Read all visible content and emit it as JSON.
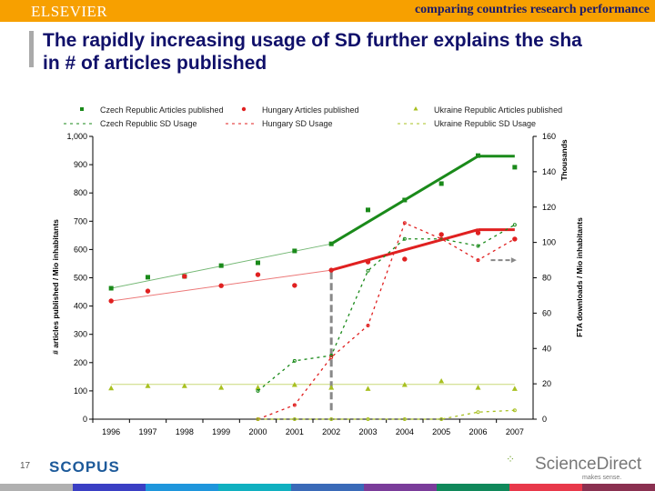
{
  "header": {
    "brand": "ELSEVIER",
    "subject": "comparing countries research performance",
    "title_line1": "The rapidly increasing usage of SD further explains the sha",
    "title_line2": "in # of articles published"
  },
  "footer": {
    "page": "17",
    "scopus": "SCOPUS",
    "sciencedirect": "ScienceDirect",
    "tagline": "makes sense.",
    "bar_colors": [
      "#b0b0b0",
      "#3a3fc4",
      "#1e96dc",
      "#10b0c0",
      "#3a6ab8",
      "#7a3c9a",
      "#10885a",
      "#e8384a",
      "#8a3050"
    ]
  },
  "chart_data": {
    "type": "line",
    "categories": [
      "1996",
      "1997",
      "1998",
      "1999",
      "2000",
      "2001",
      "2002",
      "2003",
      "2004",
      "2005",
      "2006",
      "2007"
    ],
    "ylabel": "# articles published / Mio inhabitants",
    "y2label": "FTA downloads / Mio inhabitants",
    "y2unit": "Thousands",
    "ylim": [
      0,
      1000
    ],
    "y2lim": [
      0,
      160
    ],
    "yticks": [
      "0",
      "100",
      "200",
      "300",
      "400",
      "500",
      "600",
      "700",
      "800",
      "900",
      "1,000"
    ],
    "y2ticks": [
      "0",
      "20",
      "40",
      "60",
      "80",
      "100",
      "120",
      "140",
      "160"
    ],
    "legend_position": "top",
    "series": [
      {
        "name": "Czech Republic Articles published",
        "axis": "left",
        "style": "markers",
        "marker": "square",
        "color": "#1a8a1a",
        "values": [
          463,
          502,
          505,
          543,
          553,
          595,
          620,
          740,
          775,
          833,
          932,
          891
        ]
      },
      {
        "name": "Hungary Articles published",
        "axis": "left",
        "style": "markers",
        "marker": "circle",
        "color": "#e02020",
        "values": [
          418,
          453,
          505,
          472,
          511,
          473,
          527,
          556,
          566,
          653,
          659,
          637
        ]
      },
      {
        "name": "Ukraine Republic Articles published",
        "axis": "left",
        "style": "markers",
        "marker": "triangle",
        "color": "#a8c020",
        "values": [
          110,
          118,
          118,
          112,
          112,
          122,
          112,
          108,
          122,
          135,
          112,
          108
        ]
      },
      {
        "name": "Czech Republic SD Usage",
        "axis": "right",
        "style": "dashed",
        "color": "#1a8a1a",
        "values": [
          null,
          null,
          null,
          null,
          16,
          33,
          36,
          84,
          102,
          102,
          98,
          110
        ]
      },
      {
        "name": "Hungary SD Usage",
        "axis": "right",
        "style": "dashed",
        "color": "#e02020",
        "values": [
          null,
          null,
          null,
          null,
          0,
          8,
          35,
          53,
          111,
          102,
          90,
          102
        ]
      },
      {
        "name": "Ukraine Republic SD Usage",
        "axis": "right",
        "style": "dashed",
        "color": "#a8c020",
        "values": [
          null,
          null,
          null,
          null,
          0,
          0,
          0,
          0,
          0,
          0,
          4,
          5
        ]
      }
    ],
    "trendlines": [
      {
        "color": "#1a8a1a",
        "points": [
          [
            "1996",
            463
          ],
          [
            "2002",
            620
          ],
          [
            "2006",
            930
          ],
          [
            "2007",
            930
          ]
        ]
      },
      {
        "color": "#e02020",
        "points": [
          [
            "1996",
            418
          ],
          [
            "2002",
            527
          ],
          [
            "2006",
            670
          ],
          [
            "2007",
            670
          ]
        ]
      },
      {
        "color": "#a8c020",
        "points": [
          [
            "1996",
            123
          ],
          [
            "2007",
            123
          ]
        ]
      }
    ],
    "annotations": [
      {
        "type": "vertical-dashed-line",
        "at": "2002"
      },
      {
        "type": "dashed-arrow",
        "from": "2006",
        "to": "2007",
        "y2": 90
      }
    ]
  }
}
